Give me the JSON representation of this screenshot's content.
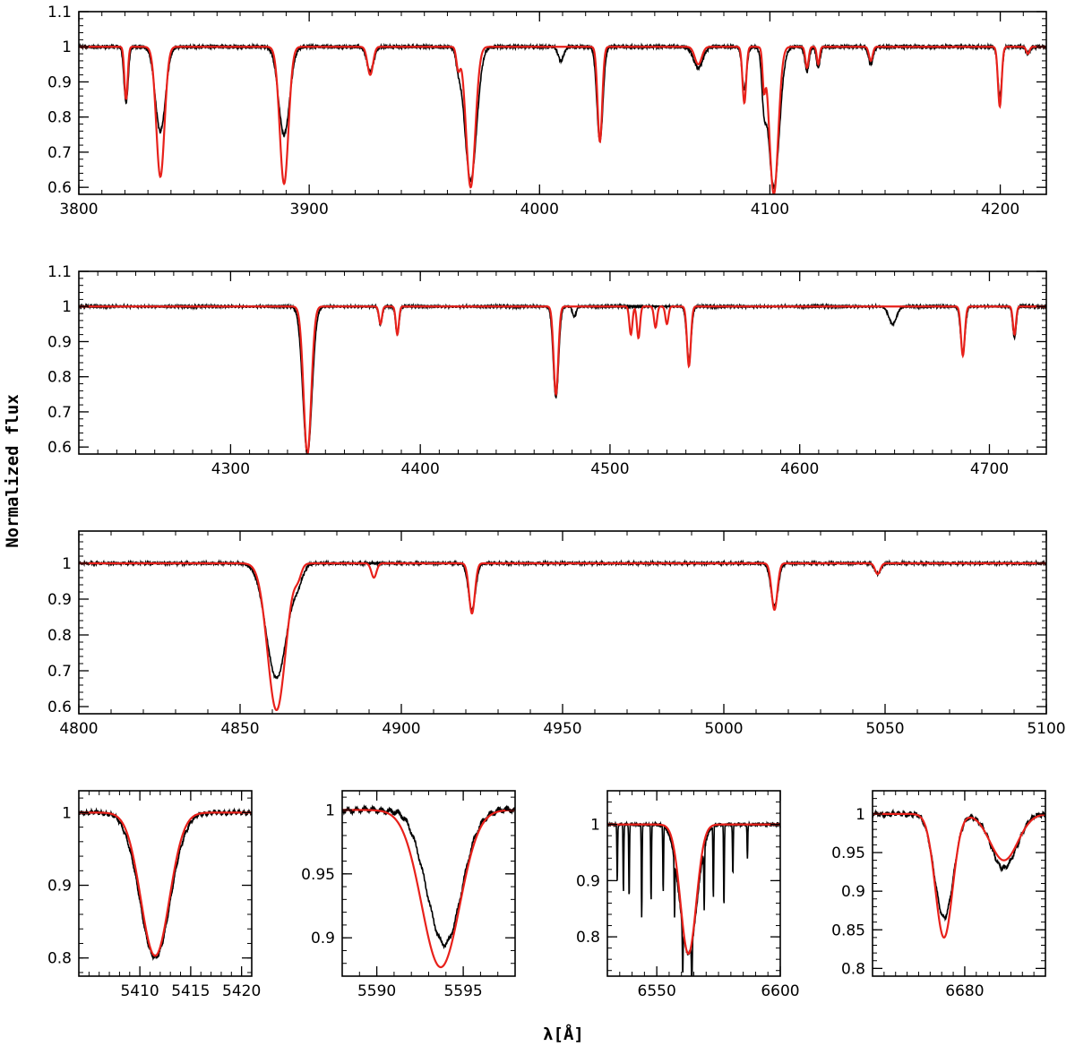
{
  "figure": {
    "ylabel": "Normalized flux",
    "xlabel": "λ[Å]",
    "colors": {
      "observed": "#000000",
      "model": "#e8211b",
      "frame": "#000000"
    }
  },
  "chart_data": [
    {
      "id": "panel-1",
      "type": "line",
      "xlim": [
        3800,
        4220
      ],
      "ylim": [
        0.58,
        1.1
      ],
      "xticks": [
        3800,
        3900,
        4000,
        4100,
        4200
      ],
      "yticks": [
        0.6,
        0.7,
        0.8,
        0.9,
        1,
        1.1
      ],
      "xminor": 10,
      "yminor": 0.02,
      "continuum": 1.0,
      "series": [
        {
          "role": "observed",
          "noise": 0.006,
          "lines": [
            [
              3820.5,
              0.16,
              0.9
            ],
            [
              3835.4,
              0.24,
              2.2
            ],
            [
              3889.1,
              0.25,
              2.4
            ],
            [
              3926.5,
              0.07,
              1.5
            ],
            [
              3970.1,
              0.38,
              2.6
            ],
            [
              3964.7,
              0.04,
              1.0
            ],
            [
              4009.3,
              0.04,
              1.2
            ],
            [
              4026.2,
              0.27,
              1.3
            ],
            [
              4068.9,
              0.06,
              2.0
            ],
            [
              4088.9,
              0.12,
              1.0
            ],
            [
              4101.7,
              0.4,
              2.4
            ],
            [
              4097.4,
              0.12,
              0.9
            ],
            [
              4116.1,
              0.07,
              0.9
            ],
            [
              4121.0,
              0.06,
              0.8
            ],
            [
              4143.8,
              0.05,
              1.0
            ],
            [
              4199.8,
              0.14,
              0.9
            ],
            [
              4212.0,
              0.02,
              0.8
            ]
          ]
        },
        {
          "role": "model",
          "noise": 0,
          "lines": [
            [
              3820.5,
              0.15,
              0.7
            ],
            [
              3835.4,
              0.37,
              1.8
            ],
            [
              3889.1,
              0.39,
              1.9
            ],
            [
              3926.5,
              0.08,
              1.2
            ],
            [
              3970.1,
              0.4,
              2.0
            ],
            [
              3964.7,
              0.06,
              0.8
            ],
            [
              4026.2,
              0.27,
              1.0
            ],
            [
              4068.9,
              0.05,
              1.5
            ],
            [
              4088.9,
              0.16,
              0.8
            ],
            [
              4101.7,
              0.42,
              1.9
            ],
            [
              4097.4,
              0.1,
              0.6
            ],
            [
              4116.1,
              0.06,
              0.7
            ],
            [
              4121.0,
              0.05,
              0.6
            ],
            [
              4143.8,
              0.04,
              0.8
            ],
            [
              4199.8,
              0.17,
              0.8
            ],
            [
              4212.0,
              0.02,
              0.7
            ]
          ]
        }
      ]
    },
    {
      "id": "panel-2",
      "type": "line",
      "xlim": [
        4220,
        4730
      ],
      "ylim": [
        0.58,
        1.1
      ],
      "xticks": [
        4300,
        4400,
        4500,
        4600,
        4700
      ],
      "yticks": [
        0.6,
        0.7,
        0.8,
        0.9,
        1,
        1.1
      ],
      "xminor": 10,
      "yminor": 0.02,
      "continuum": 1.0,
      "series": [
        {
          "role": "observed",
          "noise": 0.005,
          "lines": [
            [
              4340.5,
              0.42,
              2.4
            ],
            [
              4379.0,
              0.05,
              0.9
            ],
            [
              4387.9,
              0.08,
              0.9
            ],
            [
              4471.5,
              0.26,
              1.4
            ],
            [
              4481.2,
              0.03,
              0.9
            ],
            [
              4541.6,
              0.15,
              1.2
            ],
            [
              4649.0,
              0.05,
              2.0
            ],
            [
              4686.0,
              0.13,
              1.2
            ],
            [
              4713.2,
              0.09,
              0.9
            ]
          ]
        },
        {
          "role": "model",
          "noise": 0,
          "lines": [
            [
              4340.5,
              0.42,
              2.0
            ],
            [
              4379.0,
              0.05,
              0.8
            ],
            [
              4387.9,
              0.08,
              0.8
            ],
            [
              4471.5,
              0.25,
              1.2
            ],
            [
              4511.0,
              0.08,
              0.8
            ],
            [
              4515.0,
              0.09,
              0.8
            ],
            [
              4524.0,
              0.06,
              0.8
            ],
            [
              4530.0,
              0.05,
              0.8
            ],
            [
              4541.6,
              0.17,
              1.0
            ],
            [
              4686.0,
              0.14,
              1.0
            ],
            [
              4713.2,
              0.08,
              0.8
            ]
          ]
        }
      ]
    },
    {
      "id": "panel-3",
      "type": "line",
      "xlim": [
        4800,
        5100
      ],
      "ylim": [
        0.58,
        1.09
      ],
      "xticks": [
        4800,
        4850,
        4900,
        4950,
        5000,
        5050,
        5100
      ],
      "yticks": [
        0.6,
        0.7,
        0.8,
        0.9,
        1
      ],
      "xminor": 10,
      "yminor": 0.02,
      "continuum": 1.0,
      "series": [
        {
          "role": "observed",
          "noise": 0.005,
          "lines": [
            [
              4861.3,
              0.32,
              3.2
            ],
            [
              4868.0,
              0.04,
              1.5
            ],
            [
              4921.9,
              0.13,
              1.1
            ],
            [
              5015.7,
              0.12,
              1.1
            ],
            [
              5047.7,
              0.03,
              0.9
            ]
          ]
        },
        {
          "role": "model",
          "noise": 0,
          "lines": [
            [
              4861.3,
              0.41,
              2.8
            ],
            [
              4868.0,
              0.03,
              1.0
            ],
            [
              4891.5,
              0.04,
              0.8
            ],
            [
              4921.9,
              0.14,
              0.9
            ],
            [
              5015.7,
              0.13,
              0.9
            ],
            [
              5047.7,
              0.03,
              0.8
            ]
          ]
        }
      ]
    },
    {
      "id": "panel-4",
      "type": "line",
      "xlim": [
        5404,
        5421
      ],
      "ylim": [
        0.775,
        1.03
      ],
      "xticks": [
        5410,
        5415,
        5420
      ],
      "yticks": [
        0.8,
        0.9,
        1
      ],
      "xminor": 1,
      "yminor": 0.02,
      "continuum": 1.0,
      "series": [
        {
          "role": "observed",
          "noise": 0.004,
          "lines": [
            [
              5411.5,
              0.2,
              1.5
            ]
          ]
        },
        {
          "role": "model",
          "noise": 0,
          "lines": [
            [
              5411.5,
              0.197,
              1.4
            ]
          ]
        }
      ]
    },
    {
      "id": "panel-5",
      "type": "line",
      "xlim": [
        5588,
        5598
      ],
      "ylim": [
        0.87,
        1.015
      ],
      "xticks": [
        5590,
        5595
      ],
      "yticks": [
        0.9,
        0.95,
        1
      ],
      "xminor": 1,
      "yminor": 0.01,
      "continuum": 1.0,
      "series": [
        {
          "role": "observed",
          "noise": 0.003,
          "lines": [
            [
              5593.9,
              0.105,
              1.0
            ]
          ]
        },
        {
          "role": "model",
          "noise": 0,
          "lines": [
            [
              5593.7,
              0.123,
              1.1
            ]
          ]
        }
      ]
    },
    {
      "id": "panel-6",
      "type": "line",
      "xlim": [
        6530,
        6600
      ],
      "ylim": [
        0.73,
        1.06
      ],
      "xticks": [
        6550,
        6600
      ],
      "yticks": [
        0.8,
        0.9,
        1
      ],
      "xminor": 5,
      "yminor": 0.02,
      "continuum": 1.0,
      "series": [
        {
          "role": "observed",
          "noise": 0.004,
          "lines": [
            [
              6562.8,
              0.23,
              3.5
            ],
            [
              6534.0,
              0.1,
              0.15
            ],
            [
              6536.5,
              0.12,
              0.15
            ],
            [
              6538.8,
              0.13,
              0.15
            ],
            [
              6543.9,
              0.17,
              0.15
            ],
            [
              6547.7,
              0.14,
              0.15
            ],
            [
              6552.6,
              0.12,
              0.15
            ],
            [
              6557.2,
              0.1,
              0.15
            ],
            [
              6560.5,
              0.08,
              0.15
            ],
            [
              6564.2,
              0.08,
              0.15
            ],
            [
              6569.2,
              0.11,
              0.15
            ],
            [
              6572.9,
              0.13,
              0.15
            ],
            [
              6577.2,
              0.15,
              0.15
            ],
            [
              6580.8,
              0.09,
              0.15
            ],
            [
              6586.7,
              0.06,
              0.15
            ]
          ]
        },
        {
          "role": "model",
          "noise": 0,
          "lines": [
            [
              6562.8,
              0.23,
              3.2
            ]
          ]
        }
      ]
    },
    {
      "id": "panel-7",
      "type": "line",
      "xlim": [
        6672,
        6687
      ],
      "ylim": [
        0.79,
        1.03
      ],
      "xticks": [
        6680
      ],
      "yticks": [
        0.8,
        0.85,
        0.9,
        0.95,
        1
      ],
      "xminor": 1,
      "yminor": 0.01,
      "continuum": 1.0,
      "series": [
        {
          "role": "observed",
          "noise": 0.004,
          "lines": [
            [
              6678.2,
              0.135,
              0.8
            ],
            [
              6683.4,
              0.07,
              1.1
            ]
          ]
        },
        {
          "role": "model",
          "noise": 0,
          "lines": [
            [
              6678.2,
              0.16,
              0.75
            ],
            [
              6683.4,
              0.06,
              1.2
            ]
          ]
        }
      ]
    }
  ]
}
